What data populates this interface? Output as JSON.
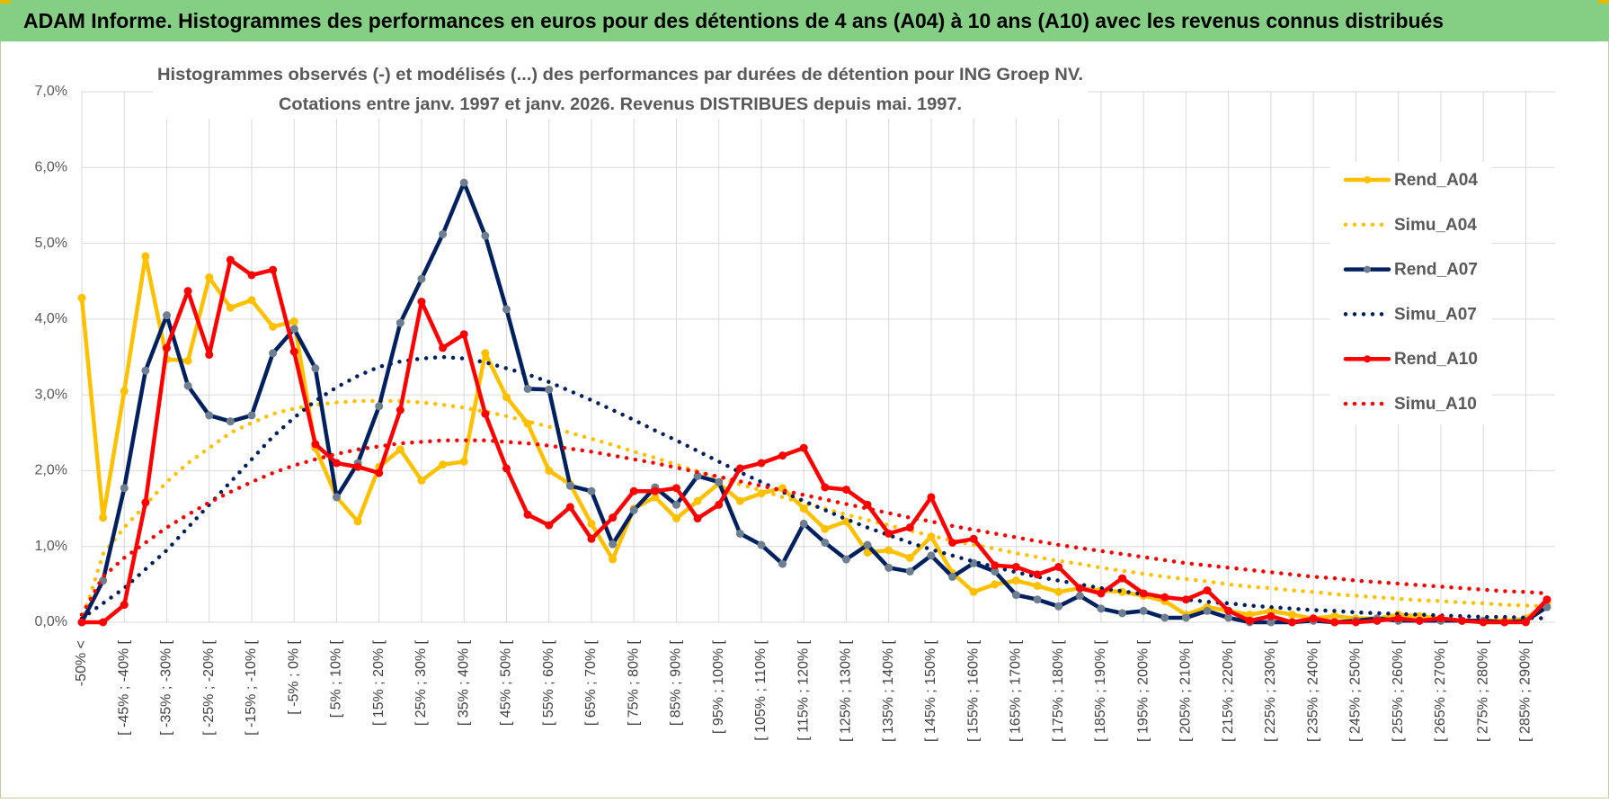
{
  "header": {
    "title": "ADAM Informe. Histogrammes des performances en euros pour des détentions de 4 ans (A04) à 10 ans (A10) avec les revenus connus distribués"
  },
  "chart_data": {
    "type": "line",
    "title": [
      "Histogrammes observés (-) et modélisés (...) des performances par durées de détention pour ING Groep NV.",
      "Cotations entre janv. 1997 et janv. 2026. Revenus DISTRIBUES depuis mai. 1997."
    ],
    "categories": [
      "-50% <",
      null,
      "[ -45% ; -40% [",
      null,
      "[ -35% ; -30% [",
      null,
      "[ -25% ; -20% [",
      null,
      "[ -15% ; -10% [",
      null,
      "[ -5% ; 0% [",
      null,
      "[ 5% ; 10% [",
      null,
      "[ 15% ; 20% [",
      null,
      "[ 25% ; 30% [",
      null,
      "[ 35% ; 40% [",
      null,
      "[ 45% ; 50% [",
      null,
      "[ 55% ; 60% [",
      null,
      "[ 65% ; 70% [",
      null,
      "[ 75% ; 80% [",
      null,
      "[ 85% ; 90% [",
      null,
      "[ 95% ; 100% [",
      null,
      "[ 105% ; 110% [",
      null,
      "[ 115% ; 120% [",
      null,
      "[ 125% ; 130% [",
      null,
      "[ 135% ; 140% [",
      null,
      "[ 145% ; 150% [",
      null,
      "[ 155% ; 160% [",
      null,
      "[ 165% ; 170% [",
      null,
      "[ 175% ; 180% [",
      null,
      "[ 185% ; 190% [",
      null,
      "[ 195% ; 200% [",
      null,
      "[ 205% ; 210% [",
      null,
      "[ 215% ; 220% [",
      null,
      "[ 225% ; 230% [",
      null,
      "[ 235% ; 240% [",
      null,
      "[ 245% ; 250% [",
      null,
      "[ 255% ; 260% [",
      null,
      "[ 265% ; 270% [",
      null,
      "[ 275% ; 280% [",
      null,
      "[ 285% ; 290% [",
      null
    ],
    "ylim": [
      0,
      7
    ],
    "yticks": [
      {
        "value": 0,
        "label": "0,0%"
      },
      {
        "value": 1,
        "label": "1,0%"
      },
      {
        "value": 2,
        "label": "2,0%"
      },
      {
        "value": 3,
        "label": "3,0%"
      },
      {
        "value": 4,
        "label": "4,0%"
      },
      {
        "value": 5,
        "label": "5,0%"
      },
      {
        "value": 6,
        "label": "6,0%"
      },
      {
        "value": 7,
        "label": "7,0%"
      }
    ],
    "grid": true,
    "legend": "right",
    "series": [
      {
        "name": "Rend_A04",
        "color": "#FFC000",
        "marker_color": "#FFC000",
        "style": "solid",
        "values": [
          4.28,
          1.38,
          3.05,
          4.83,
          3.47,
          3.45,
          4.55,
          4.15,
          4.25,
          3.9,
          3.97,
          2.3,
          1.65,
          1.33,
          2.05,
          2.28,
          1.87,
          2.08,
          2.12,
          3.55,
          2.97,
          2.62,
          2.0,
          1.82,
          1.3,
          0.83,
          1.5,
          1.65,
          1.37,
          1.6,
          1.83,
          1.6,
          1.7,
          1.77,
          1.5,
          1.23,
          1.33,
          0.92,
          0.95,
          0.85,
          1.13,
          0.65,
          0.4,
          0.5,
          0.55,
          0.48,
          0.4,
          0.45,
          0.42,
          0.4,
          0.35,
          0.28,
          0.1,
          0.2,
          0.15,
          0.1,
          0.15,
          0.1,
          0.05,
          0.08,
          0.05,
          0.05,
          0.1,
          0.08,
          0.05,
          0.02,
          0.02,
          0.02,
          0.05,
          0.25
        ]
      },
      {
        "name": "Simu_A04",
        "color": "#FFC000",
        "style": "dot",
        "values": [
          0,
          0.9,
          1.25,
          1.55,
          1.85,
          2.1,
          2.3,
          2.5,
          2.63,
          2.75,
          2.82,
          2.87,
          2.9,
          2.92,
          2.92,
          2.92,
          2.9,
          2.87,
          2.83,
          2.78,
          2.72,
          2.65,
          2.58,
          2.5,
          2.42,
          2.34,
          2.25,
          2.17,
          2.08,
          1.99,
          1.9,
          1.82,
          1.74,
          1.65,
          1.57,
          1.5,
          1.42,
          1.35,
          1.28,
          1.21,
          1.14,
          1.08,
          1.02,
          0.97,
          0.91,
          0.86,
          0.81,
          0.77,
          0.72,
          0.68,
          0.64,
          0.6,
          0.57,
          0.54,
          0.5,
          0.47,
          0.45,
          0.42,
          0.4,
          0.37,
          0.35,
          0.33,
          0.31,
          0.29,
          0.28,
          0.26,
          0.25,
          0.23,
          0.22,
          0.21
        ]
      },
      {
        "name": "Rend_A07",
        "color": "#002060",
        "marker_color": "#6e7f91",
        "style": "solid",
        "values": [
          0,
          0.55,
          1.77,
          3.32,
          4.05,
          3.12,
          2.73,
          2.65,
          2.73,
          3.55,
          3.87,
          3.35,
          1.65,
          2.1,
          2.85,
          3.95,
          4.53,
          5.12,
          5.8,
          5.1,
          4.13,
          3.08,
          3.07,
          1.8,
          1.73,
          1.03,
          1.48,
          1.78,
          1.55,
          1.93,
          1.85,
          1.17,
          1.02,
          0.77,
          1.3,
          1.05,
          0.83,
          1.02,
          0.72,
          0.67,
          0.88,
          0.6,
          0.78,
          0.67,
          0.36,
          0.3,
          0.21,
          0.35,
          0.18,
          0.12,
          0.15,
          0.06,
          0.06,
          0.15,
          0.06,
          0,
          0,
          0,
          0.02,
          0,
          0.02,
          0.05,
          0.02,
          0.02,
          0.02,
          0.02,
          0.02,
          0,
          0.02,
          0.2
        ]
      },
      {
        "name": "Simu_A07",
        "color": "#002060",
        "style": "dot",
        "values": [
          0.05,
          0.25,
          0.45,
          0.7,
          0.95,
          1.25,
          1.55,
          1.85,
          2.15,
          2.45,
          2.7,
          2.92,
          3.1,
          3.25,
          3.37,
          3.44,
          3.48,
          3.5,
          3.48,
          3.43,
          3.35,
          3.27,
          3.17,
          3.05,
          2.93,
          2.8,
          2.67,
          2.53,
          2.4,
          2.26,
          2.12,
          1.98,
          1.85,
          1.72,
          1.6,
          1.48,
          1.36,
          1.25,
          1.15,
          1.05,
          0.96,
          0.88,
          0.8,
          0.73,
          0.66,
          0.6,
          0.55,
          0.5,
          0.45,
          0.41,
          0.37,
          0.33,
          0.3,
          0.27,
          0.25,
          0.22,
          0.2,
          0.18,
          0.16,
          0.15,
          0.13,
          0.12,
          0.11,
          0.1,
          0.09,
          0.08,
          0.07,
          0.07,
          0.06,
          0.05
        ]
      },
      {
        "name": "Rend_A10",
        "color": "#FF0000",
        "marker_color": "#FF0000",
        "style": "solid",
        "values": [
          0,
          0,
          0.23,
          1.58,
          3.62,
          4.37,
          3.53,
          4.78,
          4.58,
          4.65,
          3.57,
          2.35,
          2.1,
          2.05,
          1.97,
          2.8,
          4.23,
          3.62,
          3.8,
          2.75,
          2.03,
          1.42,
          1.28,
          1.52,
          1.1,
          1.38,
          1.73,
          1.73,
          1.77,
          1.37,
          1.55,
          2.03,
          2.1,
          2.2,
          2.3,
          1.78,
          1.75,
          1.55,
          1.17,
          1.25,
          1.65,
          1.05,
          1.1,
          0.75,
          0.73,
          0.63,
          0.73,
          0.45,
          0.38,
          0.58,
          0.38,
          0.33,
          0.3,
          0.42,
          0.15,
          0.02,
          0.08,
          0,
          0.05,
          0,
          0,
          0.02,
          0.05,
          0.02,
          0.05,
          0.02,
          0,
          0,
          0,
          0.3
        ]
      },
      {
        "name": "Simu_A10",
        "color": "#FF0000",
        "style": "dot",
        "values": [
          0.1,
          0.6,
          0.85,
          1.05,
          1.25,
          1.42,
          1.58,
          1.72,
          1.85,
          1.97,
          2.07,
          2.15,
          2.22,
          2.28,
          2.32,
          2.36,
          2.38,
          2.4,
          2.4,
          2.4,
          2.38,
          2.36,
          2.33,
          2.29,
          2.25,
          2.2,
          2.15,
          2.1,
          2.04,
          1.98,
          1.92,
          1.86,
          1.8,
          1.74,
          1.68,
          1.62,
          1.56,
          1.5,
          1.44,
          1.38,
          1.33,
          1.27,
          1.22,
          1.17,
          1.12,
          1.07,
          1.02,
          0.98,
          0.94,
          0.9,
          0.86,
          0.82,
          0.78,
          0.75,
          0.72,
          0.69,
          0.66,
          0.63,
          0.6,
          0.58,
          0.55,
          0.53,
          0.51,
          0.49,
          0.47,
          0.45,
          0.43,
          0.41,
          0.4,
          0.38
        ]
      }
    ]
  }
}
